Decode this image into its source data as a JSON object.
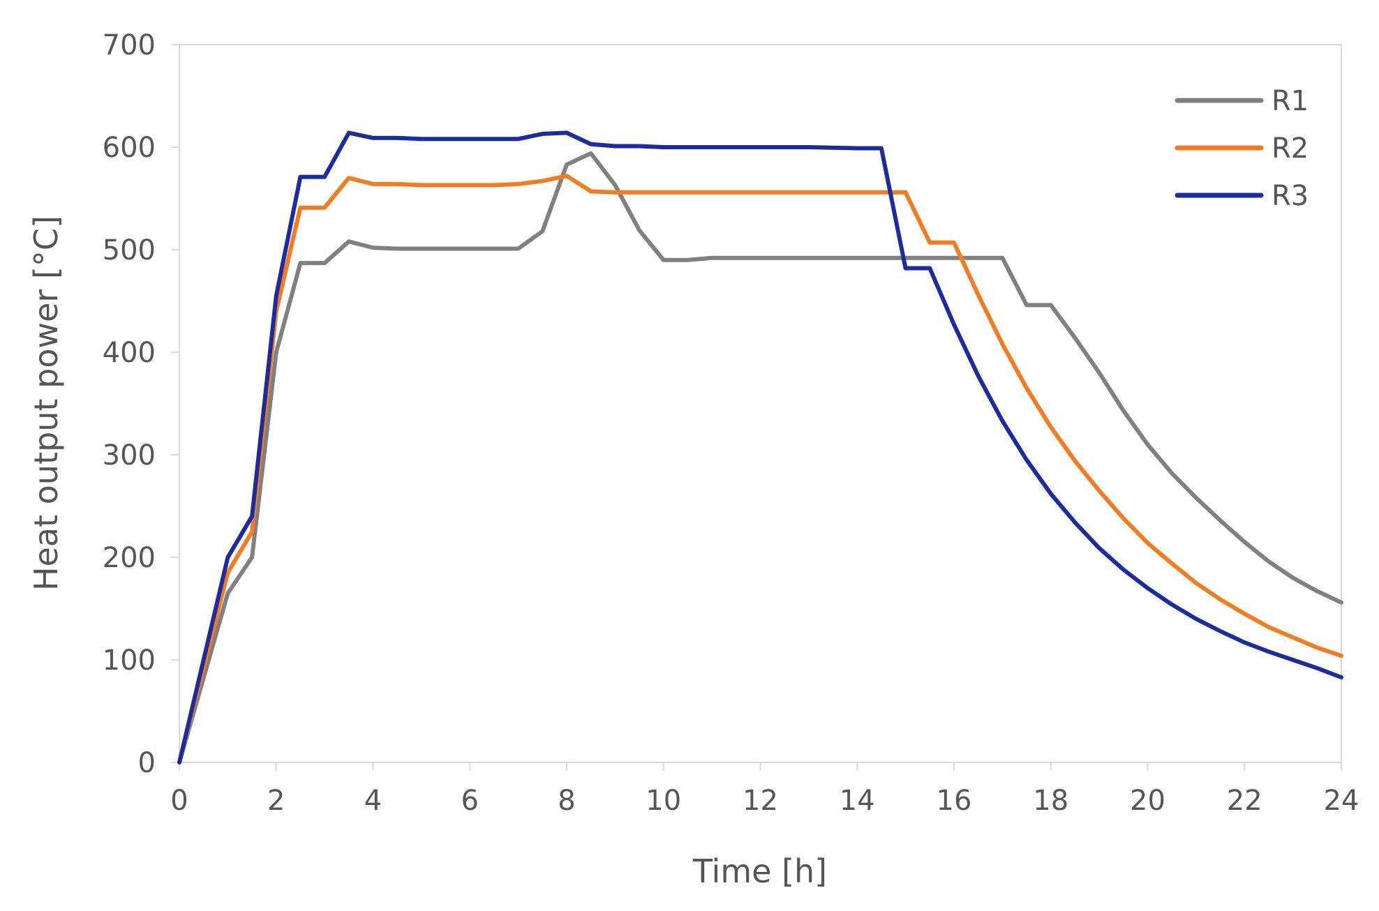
{
  "chart_data": {
    "type": "line",
    "title": "",
    "xlabel": "Time [h]",
    "ylabel": "Heat output power [°C]",
    "xlim": [
      0,
      24
    ],
    "ylim": [
      0,
      700
    ],
    "xticks": [
      0,
      2,
      4,
      6,
      8,
      10,
      12,
      14,
      16,
      18,
      20,
      22,
      24
    ],
    "yticks": [
      0,
      100,
      200,
      300,
      400,
      500,
      600,
      700
    ],
    "grid": false,
    "legend_position": "top-right",
    "series": [
      {
        "name": "R1",
        "color": "#808080",
        "x": [
          0,
          1,
          1.5,
          2,
          2.5,
          3,
          3.5,
          4,
          4.5,
          5,
          5.5,
          6,
          6.5,
          7,
          7.5,
          8,
          8.5,
          9,
          9.5,
          10,
          10.5,
          11,
          12,
          13,
          14,
          15,
          16,
          17,
          17.5,
          18,
          18.5,
          19,
          19.5,
          20,
          20.5,
          21,
          21.5,
          22,
          22.5,
          23,
          23.5,
          24
        ],
        "y": [
          0,
          165,
          200,
          400,
          487,
          487,
          508,
          502,
          501,
          501,
          501,
          501,
          501,
          501,
          518,
          583,
          594,
          563,
          519,
          490,
          490,
          492,
          492,
          492,
          492,
          492,
          492,
          492,
          446,
          446,
          414,
          380,
          343,
          310,
          282,
          258,
          236,
          215,
          196,
          180,
          167,
          156
        ]
      },
      {
        "name": "R2",
        "color": "#F47B20",
        "x": [
          0,
          1,
          1.5,
          2,
          2.5,
          3,
          3.5,
          4,
          4.5,
          5,
          5.5,
          6,
          6.5,
          7,
          7.5,
          8,
          8.5,
          9,
          9.5,
          10,
          11,
          12,
          13,
          14,
          15,
          15.5,
          16,
          16.5,
          17,
          17.5,
          18,
          18.5,
          19,
          19.5,
          20,
          20.5,
          21,
          21.5,
          22,
          22.5,
          23,
          23.5,
          24
        ],
        "y": [
          0,
          185,
          225,
          440,
          541,
          541,
          570,
          564,
          564,
          563,
          563,
          563,
          563,
          564,
          567,
          572,
          557,
          556,
          556,
          556,
          556,
          556,
          556,
          556,
          556,
          507,
          507,
          456,
          408,
          365,
          327,
          294,
          265,
          238,
          214,
          194,
          175,
          159,
          145,
          132,
          122,
          112,
          104
        ]
      },
      {
        "name": "R3",
        "color": "#1A2CA0",
        "x": [
          0,
          1,
          1.5,
          2,
          2.5,
          3,
          3.5,
          4,
          4.5,
          5,
          5.5,
          6,
          6.5,
          7,
          7.5,
          8,
          8.5,
          9,
          9.5,
          10,
          11,
          12,
          13,
          14,
          14.5,
          15,
          15.5,
          16,
          16.5,
          17,
          17.5,
          18,
          18.5,
          19,
          19.5,
          20,
          20.5,
          21,
          21.5,
          22,
          22.5,
          23,
          23.5,
          24
        ],
        "y": [
          0,
          200,
          240,
          455,
          571,
          571,
          614,
          609,
          609,
          608,
          608,
          608,
          608,
          608,
          613,
          614,
          603,
          601,
          601,
          600,
          600,
          600,
          600,
          599,
          599,
          482,
          482,
          427,
          377,
          333,
          295,
          262,
          234,
          209,
          188,
          170,
          154,
          140,
          128,
          117,
          108,
          100,
          92,
          83
        ]
      }
    ]
  }
}
